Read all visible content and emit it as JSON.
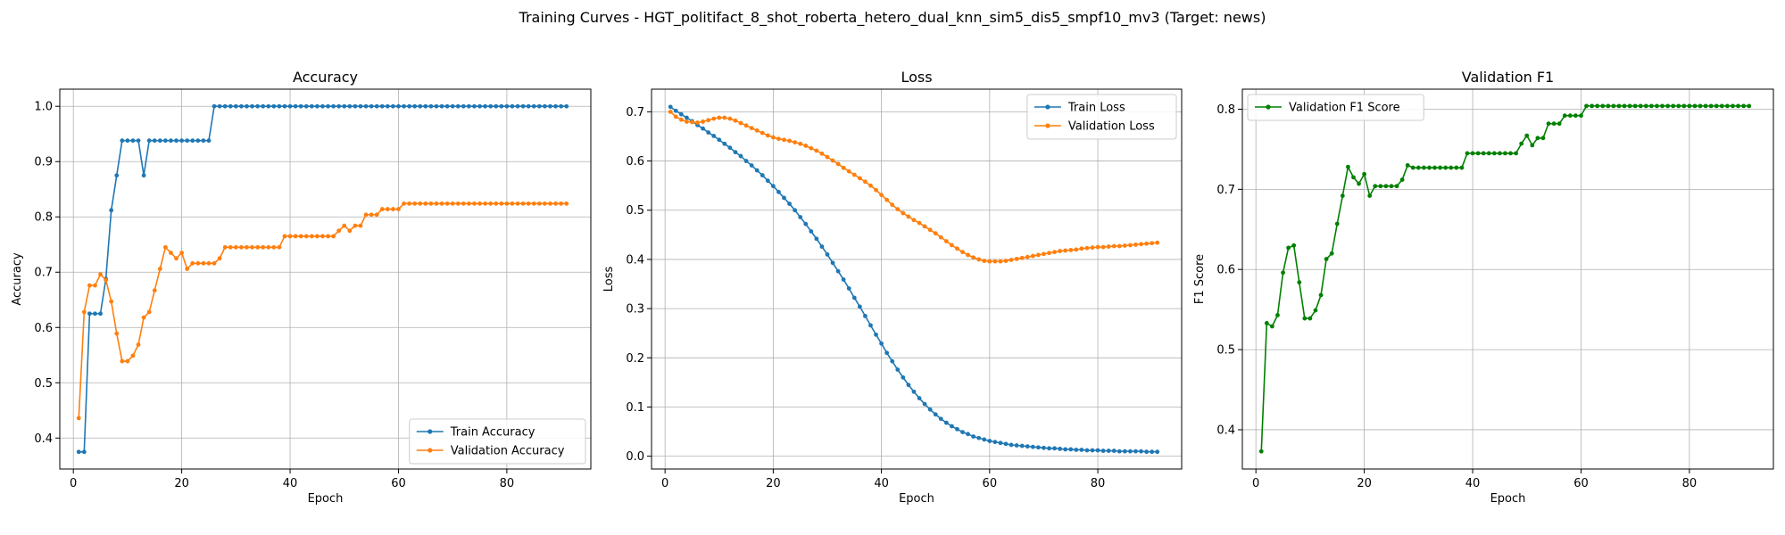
{
  "figure": {
    "suptitle": "Training Curves - HGT_politifact_8_shot_roberta_hetero_dual_knn_sim5_dis5_smpf10_mv3 (Target: news)"
  },
  "chart_data": [
    {
      "type": "line",
      "title": "Accuracy",
      "xlabel": "Epoch",
      "ylabel": "Accuracy",
      "xlim": [
        -2.5,
        95.5
      ],
      "ylim": [
        0.344,
        1.031
      ],
      "xticks": [
        0,
        20,
        40,
        60,
        80
      ],
      "yticks": [
        0.4,
        0.5,
        0.6,
        0.7,
        0.8,
        0.9,
        1.0
      ],
      "ytick_decimals": 1,
      "grid": true,
      "legend_position": "lower-right",
      "x": [
        1,
        2,
        3,
        4,
        5,
        6,
        7,
        8,
        9,
        10,
        11,
        12,
        13,
        14,
        15,
        16,
        17,
        18,
        19,
        20,
        21,
        22,
        23,
        24,
        25,
        26,
        27,
        28,
        29,
        30,
        31,
        32,
        33,
        34,
        35,
        36,
        37,
        38,
        39,
        40,
        41,
        42,
        43,
        44,
        45,
        46,
        47,
        48,
        49,
        50,
        51,
        52,
        53,
        54,
        55,
        56,
        57,
        58,
        59,
        60,
        61,
        62,
        63,
        64,
        65,
        66,
        67,
        68,
        69,
        70,
        71,
        72,
        73,
        74,
        75,
        76,
        77,
        78,
        79,
        80,
        81,
        82,
        83,
        84,
        85,
        86,
        87,
        88,
        89,
        90,
        91
      ],
      "series": [
        {
          "name": "Train Accuracy",
          "color": "#1f77b4",
          "values": [
            0.375,
            0.375,
            0.625,
            0.625,
            0.625,
            0.688,
            0.812,
            0.875,
            0.938,
            0.938,
            0.938,
            0.938,
            0.875,
            0.938,
            0.938,
            0.938,
            0.938,
            0.938,
            0.938,
            0.938,
            0.938,
            0.938,
            0.938,
            0.938,
            0.938,
            1.0,
            1.0,
            1.0,
            1.0,
            1.0,
            1.0,
            1.0,
            1.0,
            1.0,
            1.0,
            1.0,
            1.0,
            1.0,
            1.0,
            1.0,
            1.0,
            1.0,
            1.0,
            1.0,
            1.0,
            1.0,
            1.0,
            1.0,
            1.0,
            1.0,
            1.0,
            1.0,
            1.0,
            1.0,
            1.0,
            1.0,
            1.0,
            1.0,
            1.0,
            1.0,
            1.0,
            1.0,
            1.0,
            1.0,
            1.0,
            1.0,
            1.0,
            1.0,
            1.0,
            1.0,
            1.0,
            1.0,
            1.0,
            1.0,
            1.0,
            1.0,
            1.0,
            1.0,
            1.0,
            1.0,
            1.0,
            1.0,
            1.0,
            1.0,
            1.0,
            1.0,
            1.0,
            1.0,
            1.0,
            1.0,
            1.0
          ]
        },
        {
          "name": "Validation Accuracy",
          "color": "#ff7f0e",
          "values": [
            0.436,
            0.628,
            0.676,
            0.676,
            0.696,
            0.686,
            0.647,
            0.589,
            0.539,
            0.539,
            0.549,
            0.569,
            0.618,
            0.628,
            0.667,
            0.706,
            0.745,
            0.735,
            0.725,
            0.735,
            0.706,
            0.716,
            0.716,
            0.716,
            0.716,
            0.716,
            0.725,
            0.745,
            0.745,
            0.745,
            0.745,
            0.745,
            0.745,
            0.745,
            0.745,
            0.745,
            0.745,
            0.745,
            0.765,
            0.765,
            0.765,
            0.765,
            0.765,
            0.765,
            0.765,
            0.765,
            0.765,
            0.765,
            0.775,
            0.784,
            0.775,
            0.784,
            0.784,
            0.804,
            0.804,
            0.804,
            0.814,
            0.814,
            0.814,
            0.814,
            0.824,
            0.824,
            0.824,
            0.824,
            0.824,
            0.824,
            0.824,
            0.824,
            0.824,
            0.824,
            0.824,
            0.824,
            0.824,
            0.824,
            0.824,
            0.824,
            0.824,
            0.824,
            0.824,
            0.824,
            0.824,
            0.824,
            0.824,
            0.824,
            0.824,
            0.824,
            0.824,
            0.824,
            0.824,
            0.824,
            0.824
          ]
        }
      ]
    },
    {
      "type": "line",
      "title": "Loss",
      "xlabel": "Epoch",
      "ylabel": "Loss",
      "xlim": [
        -2.5,
        95.5
      ],
      "ylim": [
        -0.026,
        0.746
      ],
      "xticks": [
        0,
        20,
        40,
        60,
        80
      ],
      "yticks": [
        0.0,
        0.1,
        0.2,
        0.3,
        0.4,
        0.5,
        0.6,
        0.7
      ],
      "ytick_decimals": 1,
      "grid": true,
      "legend_position": "top-right",
      "x": [
        1,
        2,
        3,
        4,
        5,
        6,
        7,
        8,
        9,
        10,
        11,
        12,
        13,
        14,
        15,
        16,
        17,
        18,
        19,
        20,
        21,
        22,
        23,
        24,
        25,
        26,
        27,
        28,
        29,
        30,
        31,
        32,
        33,
        34,
        35,
        36,
        37,
        38,
        39,
        40,
        41,
        42,
        43,
        44,
        45,
        46,
        47,
        48,
        49,
        50,
        51,
        52,
        53,
        54,
        55,
        56,
        57,
        58,
        59,
        60,
        61,
        62,
        63,
        64,
        65,
        66,
        67,
        68,
        69,
        70,
        71,
        72,
        73,
        74,
        75,
        76,
        77,
        78,
        79,
        80,
        81,
        82,
        83,
        84,
        85,
        86,
        87,
        88,
        89,
        90,
        91
      ],
      "series": [
        {
          "name": "Train Loss",
          "color": "#1f77b4",
          "values": [
            0.71,
            0.702,
            0.695,
            0.688,
            0.681,
            0.673,
            0.666,
            0.658,
            0.651,
            0.643,
            0.635,
            0.627,
            0.618,
            0.61,
            0.6,
            0.591,
            0.581,
            0.571,
            0.56,
            0.549,
            0.537,
            0.525,
            0.513,
            0.5,
            0.486,
            0.472,
            0.457,
            0.442,
            0.426,
            0.41,
            0.393,
            0.376,
            0.359,
            0.341,
            0.322,
            0.304,
            0.285,
            0.266,
            0.247,
            0.229,
            0.21,
            0.193,
            0.176,
            0.16,
            0.145,
            0.131,
            0.118,
            0.106,
            0.095,
            0.085,
            0.076,
            0.068,
            0.061,
            0.055,
            0.049,
            0.045,
            0.04,
            0.037,
            0.034,
            0.031,
            0.029,
            0.027,
            0.025,
            0.023,
            0.022,
            0.021,
            0.02,
            0.019,
            0.018,
            0.017,
            0.016,
            0.016,
            0.015,
            0.014,
            0.014,
            0.013,
            0.013,
            0.012,
            0.012,
            0.012,
            0.011,
            0.011,
            0.011,
            0.01,
            0.01,
            0.01,
            0.01,
            0.01,
            0.009,
            0.009,
            0.009
          ]
        },
        {
          "name": "Validation Loss",
          "color": "#ff7f0e",
          "values": [
            0.7,
            0.69,
            0.684,
            0.68,
            0.679,
            0.678,
            0.68,
            0.683,
            0.686,
            0.688,
            0.688,
            0.686,
            0.682,
            0.677,
            0.672,
            0.667,
            0.662,
            0.657,
            0.652,
            0.648,
            0.645,
            0.643,
            0.641,
            0.638,
            0.635,
            0.631,
            0.626,
            0.621,
            0.615,
            0.608,
            0.601,
            0.594,
            0.586,
            0.579,
            0.572,
            0.565,
            0.558,
            0.55,
            0.541,
            0.531,
            0.521,
            0.511,
            0.502,
            0.494,
            0.487,
            0.48,
            0.474,
            0.467,
            0.46,
            0.453,
            0.445,
            0.437,
            0.429,
            0.422,
            0.415,
            0.409,
            0.404,
            0.4,
            0.397,
            0.396,
            0.396,
            0.396,
            0.397,
            0.399,
            0.401,
            0.403,
            0.405,
            0.407,
            0.409,
            0.411,
            0.413,
            0.415,
            0.417,
            0.418,
            0.419,
            0.42,
            0.422,
            0.423,
            0.424,
            0.425,
            0.425,
            0.426,
            0.427,
            0.427,
            0.428,
            0.429,
            0.43,
            0.431,
            0.432,
            0.433,
            0.434
          ]
        }
      ]
    },
    {
      "type": "line",
      "title": "Validation F1",
      "xlabel": "Epoch",
      "ylabel": "F1 Score",
      "xlim": [
        -2.5,
        95.5
      ],
      "ylim": [
        0.351,
        0.825
      ],
      "xticks": [
        0,
        20,
        40,
        60,
        80
      ],
      "yticks": [
        0.4,
        0.5,
        0.6,
        0.7,
        0.8
      ],
      "ytick_decimals": 1,
      "grid": true,
      "legend_position": "top-left",
      "x": [
        1,
        2,
        3,
        4,
        5,
        6,
        7,
        8,
        9,
        10,
        11,
        12,
        13,
        14,
        15,
        16,
        17,
        18,
        19,
        20,
        21,
        22,
        23,
        24,
        25,
        26,
        27,
        28,
        29,
        30,
        31,
        32,
        33,
        34,
        35,
        36,
        37,
        38,
        39,
        40,
        41,
        42,
        43,
        44,
        45,
        46,
        47,
        48,
        49,
        50,
        51,
        52,
        53,
        54,
        55,
        56,
        57,
        58,
        59,
        60,
        61,
        62,
        63,
        64,
        65,
        66,
        67,
        68,
        69,
        70,
        71,
        72,
        73,
        74,
        75,
        76,
        77,
        78,
        79,
        80,
        81,
        82,
        83,
        84,
        85,
        86,
        87,
        88,
        89,
        90,
        91
      ],
      "series": [
        {
          "name": "Validation F1 Score",
          "color": "#008000",
          "values": [
            0.373,
            0.533,
            0.529,
            0.543,
            0.596,
            0.627,
            0.63,
            0.584,
            0.539,
            0.539,
            0.549,
            0.568,
            0.613,
            0.62,
            0.657,
            0.692,
            0.728,
            0.715,
            0.707,
            0.719,
            0.692,
            0.704,
            0.704,
            0.704,
            0.704,
            0.704,
            0.712,
            0.73,
            0.727,
            0.727,
            0.727,
            0.727,
            0.727,
            0.727,
            0.727,
            0.727,
            0.727,
            0.727,
            0.745,
            0.745,
            0.745,
            0.745,
            0.745,
            0.745,
            0.745,
            0.745,
            0.745,
            0.745,
            0.757,
            0.767,
            0.755,
            0.764,
            0.764,
            0.782,
            0.782,
            0.782,
            0.792,
            0.792,
            0.792,
            0.792,
            0.804,
            0.804,
            0.804,
            0.804,
            0.804,
            0.804,
            0.804,
            0.804,
            0.804,
            0.804,
            0.804,
            0.804,
            0.804,
            0.804,
            0.804,
            0.804,
            0.804,
            0.804,
            0.804,
            0.804,
            0.804,
            0.804,
            0.804,
            0.804,
            0.804,
            0.804,
            0.804,
            0.804,
            0.804,
            0.804,
            0.804
          ]
        }
      ]
    }
  ]
}
